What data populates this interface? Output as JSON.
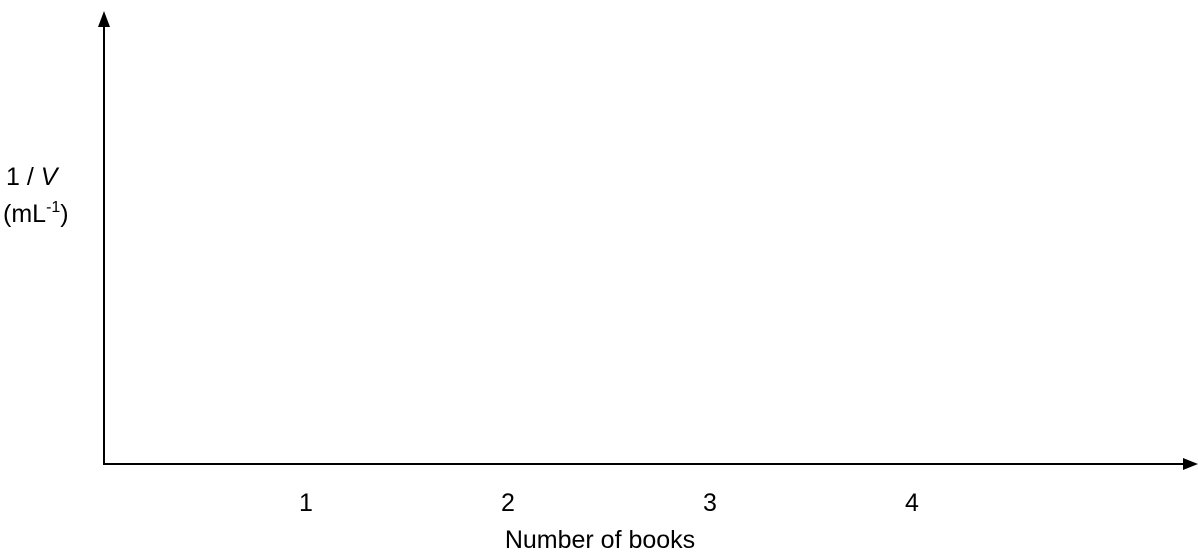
{
  "chart_data": {
    "type": "scatter",
    "title": "",
    "xlabel": "Number of books",
    "ylabel": {
      "prefix": "1 / ",
      "variable": "V",
      "unit_open": "(mL",
      "unit_sup": "-1",
      "unit_close": ")"
    },
    "x_ticks": [
      1,
      2,
      3,
      4
    ],
    "xlim": [
      0,
      4.15
    ],
    "ylim": [
      0,
      1
    ],
    "series": [],
    "grid": false,
    "axis_color": "#000000"
  }
}
